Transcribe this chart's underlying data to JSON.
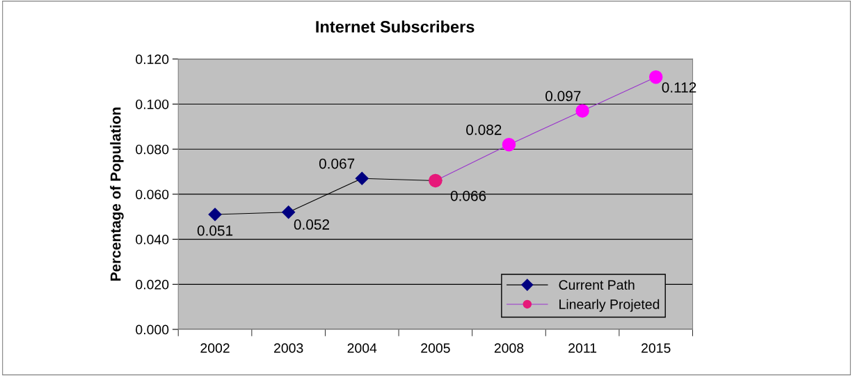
{
  "chart_data": {
    "type": "line",
    "title": "Internet Subscribers",
    "ylabel": "Percentage of Population",
    "categories": [
      "2002",
      "2003",
      "2004",
      "2005",
      "2008",
      "2011",
      "2015"
    ],
    "series": [
      {
        "name": "Current Path",
        "color": "#000080",
        "marker": "diamond",
        "values": [
          0.051,
          0.052,
          0.067,
          0.066,
          null,
          null,
          null
        ],
        "value_labels": [
          "0.051",
          "0.052",
          "0.067",
          "0.066",
          null,
          null,
          null
        ]
      },
      {
        "name": "Linearly Projeted",
        "color": "#9933cc",
        "colors": [
          null,
          null,
          null,
          "#e6197a",
          "#ff00ff",
          "#ff00ff",
          "#ff00ff"
        ],
        "marker": "circle",
        "values": [
          null,
          null,
          null,
          0.066,
          0.082,
          0.097,
          0.112
        ],
        "value_labels": [
          null,
          null,
          null,
          null,
          "0.082",
          "0.097",
          "0.112"
        ]
      }
    ],
    "ylim": [
      0,
      0.12
    ],
    "yticks": [
      {
        "value": 0,
        "label": "0.000"
      },
      {
        "value": 0.02,
        "label": "0.020"
      },
      {
        "value": 0.04,
        "label": "0.040"
      },
      {
        "value": 0.06,
        "label": "0.060"
      },
      {
        "value": 0.08,
        "label": "0.080"
      },
      {
        "value": 0.1,
        "label": "0.100"
      },
      {
        "value": 0.12,
        "label": "0.120"
      }
    ],
    "grid": "y",
    "legend": "bottom right"
  }
}
